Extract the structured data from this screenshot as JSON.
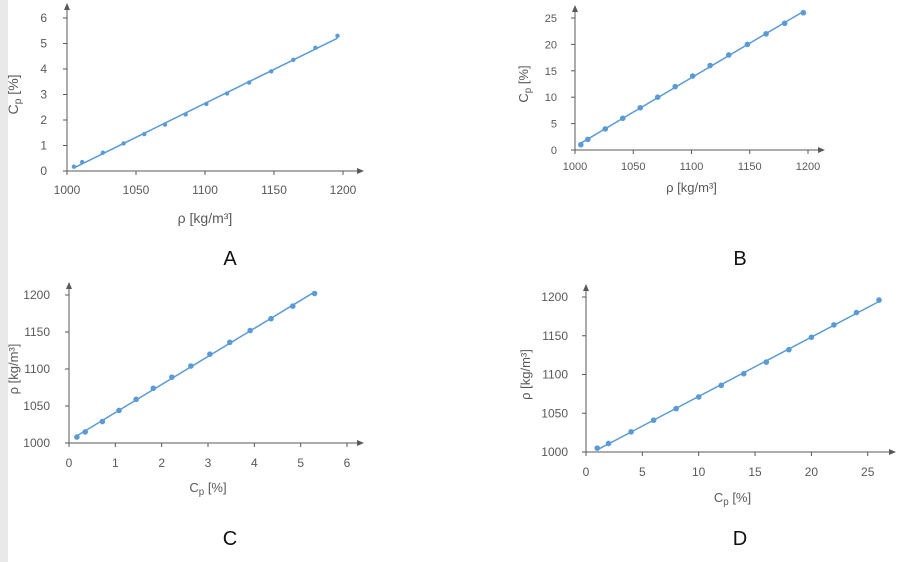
{
  "chart_data": [
    {
      "id": "A",
      "type": "scatter",
      "panel_label": "A",
      "xlabel": "ρ [kg/m³]",
      "ylabel": "Cp [%]",
      "xlim": [
        1000,
        1200
      ],
      "ylim": [
        0,
        6
      ],
      "xticks": [
        1000,
        1050,
        1100,
        1150,
        1200
      ],
      "yticks": [
        0,
        1,
        2,
        3,
        4,
        5,
        6
      ],
      "trendline": true,
      "series": [
        {
          "x": [
            1005,
            1011,
            1026,
            1041,
            1056,
            1071,
            1086,
            1101,
            1116,
            1132,
            1148,
            1164,
            1180,
            1196
          ],
          "y": [
            0.17,
            0.35,
            0.72,
            1.08,
            1.45,
            1.82,
            2.22,
            2.63,
            3.04,
            3.47,
            3.91,
            4.36,
            4.83,
            5.3
          ]
        }
      ]
    },
    {
      "id": "B",
      "type": "scatter",
      "panel_label": "B",
      "xlabel": "ρ [kg/m³]",
      "ylabel": "Cp [%]",
      "xlim": [
        1000,
        1200
      ],
      "ylim": [
        0,
        25
      ],
      "xticks": [
        1000,
        1050,
        1100,
        1150,
        1200
      ],
      "yticks": [
        0,
        5,
        10,
        15,
        20,
        25
      ],
      "trendline": true,
      "series": [
        {
          "x": [
            1005,
            1011,
            1026,
            1041,
            1056,
            1071,
            1086,
            1101,
            1116,
            1132,
            1148,
            1164,
            1180,
            1196
          ],
          "y": [
            1,
            2,
            4,
            6,
            8,
            10,
            12,
            14,
            16,
            18,
            20,
            22,
            24,
            26
          ]
        }
      ]
    },
    {
      "id": "C",
      "type": "scatter",
      "panel_label": "C",
      "xlabel": "Cp [%]",
      "ylabel": "ρ [kg/m³]",
      "xlim": [
        0,
        6
      ],
      "ylim": [
        1000,
        1200
      ],
      "xticks": [
        0,
        1,
        2,
        3,
        4,
        5,
        6
      ],
      "yticks": [
        1000,
        1050,
        1100,
        1150,
        1200
      ],
      "trendline": true,
      "series": [
        {
          "x": [
            0.17,
            0.35,
            0.72,
            1.08,
            1.45,
            1.82,
            2.22,
            2.63,
            3.04,
            3.47,
            3.91,
            4.36,
            4.83,
            5.3
          ],
          "y": [
            1008,
            1015,
            1029,
            1044,
            1059,
            1074,
            1089,
            1104,
            1120,
            1136,
            1152,
            1168,
            1185,
            1202
          ]
        }
      ]
    },
    {
      "id": "D",
      "type": "scatter",
      "panel_label": "D",
      "xlabel": "Cp [%]",
      "ylabel": "ρ [kg/m³]",
      "xlim": [
        0,
        26
      ],
      "ylim": [
        1000,
        1200
      ],
      "xticks": [
        0,
        5,
        10,
        15,
        20,
        25
      ],
      "yticks": [
        1000,
        1050,
        1100,
        1150,
        1200
      ],
      "trendline": true,
      "series": [
        {
          "x": [
            1,
            2,
            4,
            6,
            8,
            10,
            12,
            14,
            16,
            18,
            20,
            22,
            24,
            26
          ],
          "y": [
            1005,
            1011,
            1026,
            1041,
            1056,
            1071,
            1086,
            1101,
            1116,
            1132,
            1148,
            1164,
            1180,
            1196
          ]
        }
      ]
    }
  ],
  "colors": {
    "series": "#5b9bd5",
    "trendline": "#5b9bd5",
    "axis": "#595959",
    "text": "#595959"
  }
}
